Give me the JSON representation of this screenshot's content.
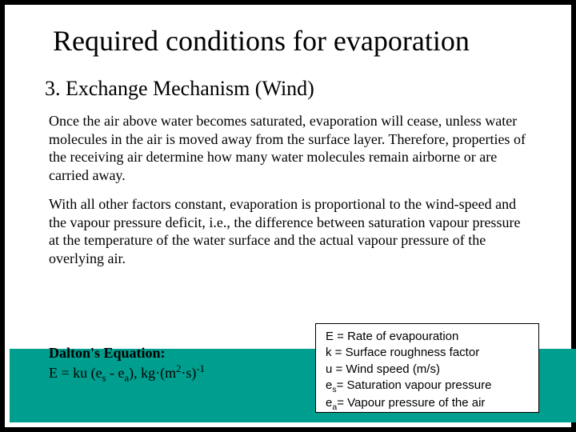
{
  "title": "Required conditions for evaporation",
  "subtitle": "3. Exchange Mechanism (Wind)",
  "para1": "Once the air above water becomes saturated, evaporation will cease, unless water molecules in the air is moved away from the surface layer. Therefore, properties of the receiving air determine how many water molecules remain airborne or are carried away.",
  "para2": "With all other factors constant, evaporation is proportional to the wind-speed and the vapour pressure deficit, i.e., the difference between saturation vapour pressure at the temperature of the water surface and the actual vapour pressure of the overlying air.",
  "dalton": {
    "label": "Dalton's Equation:",
    "eq_prefix": "E = ku (e",
    "eq_sub1": "s",
    "eq_mid": " - e",
    "eq_sub2": "a",
    "eq_units_prefix": "),    kg·(m",
    "eq_sup1": "2",
    "eq_units_mid": "·s)",
    "eq_sup2": "-1"
  },
  "legend": {
    "l1": "E = Rate of evapouration",
    "l2": "k = Surface roughness factor",
    "l3": "u = Wind speed (m/s)",
    "l4a": "e",
    "l4s": "s",
    "l4b": "= Saturation vapour pressure",
    "l5a": "e",
    "l5s": "a",
    "l5b": "= Vapour pressure of the air"
  },
  "colors": {
    "page_bg": "#000000",
    "slide_bg": "#ffffff",
    "band": "#009e8e",
    "text": "#000000",
    "legend_border": "#000000"
  },
  "fonts": {
    "serif": "Times New Roman",
    "sans": "Arial",
    "title_size_pt": 27,
    "subtitle_size_pt": 20,
    "body_size_pt": 14,
    "legend_size_pt": 12
  }
}
